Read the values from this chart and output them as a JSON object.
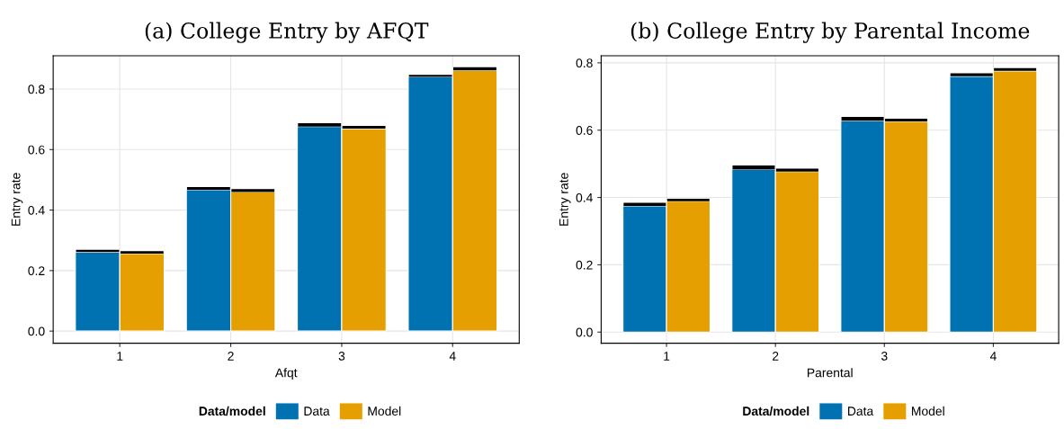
{
  "chart_data": [
    {
      "type": "bar",
      "title": "(a) College Entry by AFQT",
      "xlabel": "Afqt",
      "ylabel": "Entry rate",
      "legend_title": "Data/model",
      "legend": "bottom",
      "grid": true,
      "categories": [
        "1",
        "2",
        "3",
        "4"
      ],
      "ylim": [
        -0.04,
        0.91
      ],
      "yticks": [
        {
          "value": 0,
          "label": "0.0"
        },
        0.2,
        0.4,
        0.6,
        0.8
      ],
      "series": [
        {
          "name": "Data",
          "color": "#0072b2",
          "values": [
            0.261,
            0.467,
            0.676,
            0.84
          ],
          "errors": [
            [
              0.261,
              0.269
            ],
            [
              0.467,
              0.476
            ],
            [
              0.676,
              0.687
            ],
            [
              0.84,
              0.847
            ]
          ]
        },
        {
          "name": "Model",
          "color": "#e69f00",
          "values": [
            0.256,
            0.46,
            0.669,
            0.862
          ],
          "errors": [
            [
              0.256,
              0.264
            ],
            [
              0.46,
              0.469
            ],
            [
              0.669,
              0.678
            ],
            [
              0.862,
              0.872
            ]
          ]
        }
      ]
    },
    {
      "type": "bar",
      "title": "(b) College Entry by Parental Income",
      "xlabel": "Parental",
      "ylabel": "Entry rate",
      "legend_title": "Data/model",
      "legend": "bottom",
      "grid": true,
      "categories": [
        "1",
        "2",
        "3",
        "4"
      ],
      "ylim": [
        -0.033,
        0.821
      ],
      "yticks": [
        {
          "value": 0,
          "label": "0.0"
        },
        0.2,
        0.4,
        0.6,
        0.8
      ],
      "series": [
        {
          "name": "Data",
          "color": "#0072b2",
          "values": [
            0.375,
            0.483,
            0.628,
            0.76
          ],
          "errors": [
            [
              0.375,
              0.384
            ],
            [
              0.483,
              0.495
            ],
            [
              0.628,
              0.639
            ],
            [
              0.76,
              0.769
            ]
          ]
        },
        {
          "name": "Model",
          "color": "#e69f00",
          "values": [
            0.389,
            0.477,
            0.626,
            0.776
          ],
          "errors": [
            [
              0.389,
              0.396
            ],
            [
              0.477,
              0.486
            ],
            [
              0.626,
              0.634
            ],
            [
              0.776,
              0.784
            ]
          ]
        }
      ]
    }
  ]
}
